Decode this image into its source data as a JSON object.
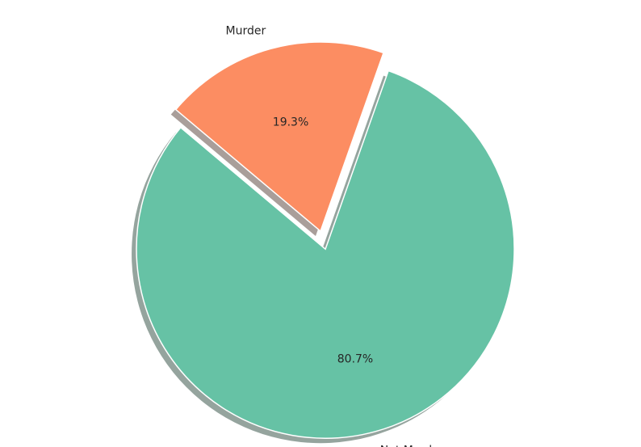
{
  "chart_data": {
    "type": "pie",
    "categories": [
      "Not Murder",
      "Murder"
    ],
    "values": [
      80.7,
      19.3
    ],
    "percent_labels": [
      "80.7%",
      "19.3%"
    ],
    "colors": [
      "#66c2a5",
      "#fc8d62"
    ],
    "shadow_colors": [
      "#8a9a93",
      "#a0948f"
    ],
    "exploded": [
      "Not Murder"
    ],
    "shadow": true,
    "title": ""
  }
}
